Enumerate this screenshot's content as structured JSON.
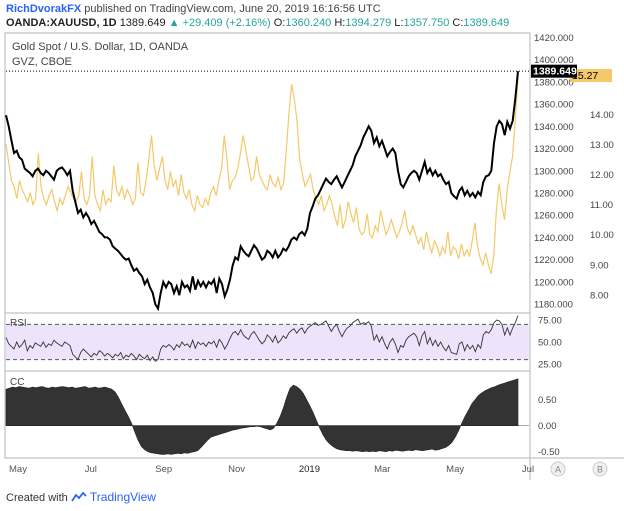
{
  "header": {
    "author": "RichDvorakFX",
    "published_text": "published on TradingView.com, June 20, 2019 16:16:56 UTC",
    "symbol": "OANDA:XAUUSD, 1D",
    "last": "1389.649",
    "change": "+29.409 (+2.16%)",
    "ohlc": {
      "o_label": "O:",
      "o": "1360.240",
      "h_label": "H:",
      "h": "1394.279",
      "l_label": "L:",
      "l": "1357.750",
      "c_label": "C:",
      "c": "1389.649"
    }
  },
  "footer": {
    "created_with": "Created with",
    "brand": "TradingView"
  },
  "colors": {
    "gold": "#000000",
    "gvz": "#f3c969",
    "rsi_band": "#ede4fb",
    "cc_fill": "#333333",
    "accent": "#2962ff"
  },
  "chart_data": [
    {
      "type": "line",
      "panel": "main",
      "legend": [
        "Gold Spot / U.S. Dollar, 1D, OANDA",
        "GVZ, CBOE"
      ],
      "x_ticks": [
        "May",
        "Jul",
        "Sep",
        "Nov",
        "2019",
        "Mar",
        "May",
        "Jul"
      ],
      "y_left_ticks": [
        "1420.000",
        "1400.000",
        "1380.000",
        "1360.000",
        "1340.000",
        "1320.000",
        "1300.000",
        "1280.000",
        "1260.000",
        "1240.000",
        "1220.000",
        "1200.000",
        "1180.000"
      ],
      "y_left_range": [
        1172,
        1424
      ],
      "y_right_ticks": [
        "15.00",
        "14.00",
        "13.00",
        "12.00",
        "11.00",
        "10.00",
        "9.00",
        "8.00"
      ],
      "y_right_range": [
        7.4,
        16.7
      ],
      "last_price_label": "1389.649",
      "last_gvz_label": "15.27",
      "series": [
        {
          "name": "Gold Spot / U.S. Dollar, 1D, OANDA",
          "axis": "left",
          "values": [
            1350,
            1340,
            1328,
            1316,
            1318,
            1312,
            1310,
            1302,
            1300,
            1298,
            1295,
            1300,
            1302,
            1298,
            1296,
            1300,
            1298,
            1295,
            1292,
            1300,
            1302,
            1303,
            1300,
            1296,
            1300,
            1282,
            1272,
            1262,
            1265,
            1258,
            1262,
            1258,
            1252,
            1255,
            1250,
            1245,
            1243,
            1240,
            1240,
            1238,
            1232,
            1230,
            1228,
            1225,
            1222,
            1220,
            1221,
            1215,
            1210,
            1212,
            1208,
            1205,
            1198,
            1202,
            1195,
            1190,
            1180,
            1176,
            1190,
            1200,
            1195,
            1200,
            1198,
            1190,
            1196,
            1188,
            1200,
            1195,
            1197,
            1192,
            1205,
            1193,
            1201,
            1196,
            1200,
            1195,
            1200,
            1198,
            1202,
            1190,
            1203,
            1198,
            1187,
            1193,
            1202,
            1215,
            1222,
            1220,
            1232,
            1228,
            1225,
            1223,
            1228,
            1233,
            1230,
            1225,
            1220,
            1222,
            1228,
            1226,
            1222,
            1228,
            1222,
            1225,
            1230,
            1228,
            1232,
            1238,
            1240,
            1238,
            1243,
            1245,
            1242,
            1248,
            1262,
            1268,
            1275,
            1278,
            1283,
            1288,
            1293,
            1290,
            1288,
            1292,
            1295,
            1290,
            1285,
            1290,
            1295,
            1300,
            1305,
            1313,
            1318,
            1323,
            1330,
            1335,
            1340,
            1336,
            1325,
            1330,
            1322,
            1327,
            1320,
            1313,
            1317,
            1320,
            1316,
            1300,
            1288,
            1285,
            1290,
            1295,
            1298,
            1300,
            1298,
            1292,
            1300,
            1308,
            1298,
            1302,
            1296,
            1300,
            1295,
            1297,
            1292,
            1288,
            1290,
            1280,
            1277,
            1275,
            1282,
            1285,
            1278,
            1282,
            1277,
            1280,
            1276,
            1281,
            1278,
            1290,
            1295,
            1296,
            1300,
            1325,
            1340,
            1345,
            1342,
            1332,
            1344,
            1338,
            1345,
            1365,
            1389.649
          ]
        },
        {
          "name": "GVZ, CBOE",
          "axis": "right",
          "values": [
            13.0,
            12.4,
            11.8,
            11.6,
            11.2,
            11.8,
            11.5,
            11.3,
            11.1,
            11.4,
            11.0,
            11.2,
            12.7,
            11.6,
            11.2,
            11.0,
            11.3,
            11.5,
            11.1,
            10.8,
            11.2,
            11.0,
            11.3,
            11.6,
            11.4,
            11.2,
            11.1,
            11.3,
            12.1,
            11.2,
            11.0,
            11.3,
            12.6,
            11.3,
            11.0,
            10.8,
            11.5,
            11.0,
            11.2,
            11.1,
            12.3,
            11.5,
            11.3,
            11.6,
            11.2,
            11.5,
            11.3,
            11.0,
            11.2,
            12.4,
            11.4,
            11.3,
            11.8,
            12.5,
            13.3,
            12.3,
            11.8,
            12.2,
            12.6,
            11.8,
            11.5,
            12.1,
            11.6,
            11.8,
            11.3,
            12.0,
            11.4,
            11.2,
            11.5,
            11.0,
            10.8,
            11.3,
            11.0,
            10.9,
            11.2,
            11.0,
            11.4,
            11.6,
            11.3,
            11.8,
            12.2,
            13.3,
            12.5,
            11.5,
            11.8,
            11.9,
            12.2,
            12.7,
            13.3,
            12.8,
            12.3,
            11.8,
            11.9,
            12.6,
            12.0,
            11.8,
            11.6,
            11.5,
            12.0,
            11.7,
            11.6,
            11.9,
            11.5,
            11.7,
            12.8,
            14.0,
            15.0,
            14.5,
            13.8,
            12.5,
            12.0,
            11.6,
            11.8,
            12.0,
            11.5,
            11.2,
            11.0,
            11.3,
            10.8,
            11.0,
            11.3,
            11.0,
            10.6,
            10.3,
            11.0,
            10.2,
            10.5,
            11.1,
            10.7,
            10.4,
            10.9,
            10.2,
            10.0,
            10.1,
            10.7,
            10.0,
            9.9,
            10.3,
            10.1,
            10.8,
            10.4,
            10.0,
            10.2,
            10.5,
            10.2,
            9.9,
            10.1,
            10.4,
            10.8,
            10.2,
            10.0,
            10.3,
            10.0,
            9.7,
            9.9,
            9.5,
            10.1,
            9.7,
            9.4,
            9.8,
            9.6,
            9.3,
            9.6,
            9.4,
            10.1,
            9.3,
            9.6,
            9.5,
            9.2,
            9.7,
            9.3,
            9.5,
            9.3,
            9.8,
            10.4,
            9.6,
            9.2,
            9.0,
            9.4,
            9.0,
            8.7,
            9.3,
            10.8,
            11.7,
            11.0,
            10.5,
            11.5,
            12.1,
            12.6,
            13.8,
            15.27
          ]
        }
      ]
    },
    {
      "type": "line",
      "panel": "rsi",
      "legend": [
        "RSI"
      ],
      "y_ticks": [
        "75.00",
        "50.00",
        "25.00"
      ],
      "y_range": [
        17,
        83
      ],
      "overbought": 70,
      "oversold": 30,
      "series": [
        {
          "name": "RSI",
          "values": [
            55,
            48,
            45,
            42,
            50,
            44,
            47,
            52,
            40,
            46,
            43,
            49,
            47,
            45,
            50,
            44,
            48,
            46,
            52,
            49,
            47,
            45,
            50,
            48,
            46,
            36,
            33,
            30,
            38,
            42,
            39,
            36,
            33,
            37,
            35,
            40,
            38,
            34,
            37,
            35,
            32,
            36,
            34,
            38,
            31,
            35,
            33,
            37,
            34,
            30,
            36,
            33,
            31,
            35,
            29,
            33,
            28,
            30,
            42,
            46,
            44,
            47,
            45,
            41,
            47,
            44,
            50,
            46,
            48,
            44,
            52,
            43,
            50,
            47,
            49,
            45,
            50,
            48,
            51,
            44,
            53,
            49,
            42,
            47,
            54,
            60,
            62,
            58,
            64,
            58,
            55,
            53,
            59,
            62,
            57,
            52,
            48,
            51,
            58,
            55,
            50,
            57,
            49,
            52,
            57,
            54,
            60,
            63,
            65,
            60,
            64,
            66,
            60,
            65,
            68,
            70,
            72,
            69,
            70,
            72,
            74,
            68,
            62,
            67,
            70,
            62,
            56,
            62,
            66,
            68,
            72,
            74,
            76,
            70,
            72,
            71,
            73,
            68,
            52,
            58,
            50,
            56,
            48,
            42,
            50,
            54,
            48,
            38,
            46,
            44,
            52,
            56,
            58,
            60,
            56,
            46,
            57,
            62,
            48,
            55,
            46,
            52,
            45,
            50,
            44,
            40,
            46,
            38,
            37,
            36,
            48,
            50,
            40,
            47,
            42,
            46,
            39,
            47,
            43,
            58,
            62,
            60,
            64,
            72,
            75,
            74,
            70,
            58,
            66,
            58,
            66,
            72,
            80
          ]
        }
      ]
    },
    {
      "type": "area",
      "panel": "cc",
      "legend": [
        "CC"
      ],
      "y_ticks": [
        "0.50",
        "0.00",
        "-0.50"
      ],
      "y_range": [
        -0.62,
        1.05
      ],
      "series": [
        {
          "name": "CC",
          "values": [
            0.7,
            0.72,
            0.74,
            0.73,
            0.75,
            0.74,
            0.73,
            0.72,
            0.74,
            0.73,
            0.74,
            0.75,
            0.73,
            0.72,
            0.74,
            0.73,
            0.74,
            0.75,
            0.74,
            0.73,
            0.74,
            0.72,
            0.73,
            0.74,
            0.75,
            0.72,
            0.73,
            0.74,
            0.72,
            0.73,
            0.74,
            0.72,
            0.7,
            0.65,
            0.55,
            0.42,
            0.3,
            0.18,
            0.05,
            -0.12,
            -0.28,
            -0.4,
            -0.46,
            -0.5,
            -0.52,
            -0.53,
            -0.54,
            -0.55,
            -0.55,
            -0.54,
            -0.55,
            -0.54,
            -0.53,
            -0.54,
            -0.52,
            -0.53,
            -0.51,
            -0.5,
            -0.48,
            -0.42,
            -0.35,
            -0.28,
            -0.22,
            -0.2,
            -0.18,
            -0.16,
            -0.14,
            -0.12,
            -0.1,
            -0.08,
            -0.07,
            -0.05,
            -0.04,
            -0.03,
            -0.02,
            -0.02,
            -0.01,
            -0.02,
            -0.04,
            -0.06,
            -0.08,
            -0.05,
            0.05,
            0.18,
            0.35,
            0.55,
            0.72,
            0.78,
            0.75,
            0.7,
            0.62,
            0.5,
            0.38,
            0.25,
            0.1,
            -0.05,
            -0.18,
            -0.28,
            -0.35,
            -0.4,
            -0.44,
            -0.46,
            -0.47,
            -0.48,
            -0.48,
            -0.49,
            -0.48,
            -0.49,
            -0.5,
            -0.49,
            -0.5,
            -0.49,
            -0.5,
            -0.48,
            -0.49,
            -0.5,
            -0.48,
            -0.49,
            -0.47,
            -0.48,
            -0.49,
            -0.48,
            -0.47,
            -0.48,
            -0.46,
            -0.47,
            -0.48,
            -0.47,
            -0.46,
            -0.45,
            -0.47,
            -0.46,
            -0.44,
            -0.42,
            -0.38,
            -0.32,
            -0.22,
            -0.1,
            0.05,
            0.18,
            0.3,
            0.42,
            0.5,
            0.58,
            0.63,
            0.67,
            0.7,
            0.73,
            0.75,
            0.78,
            0.8,
            0.82,
            0.84,
            0.86,
            0.88,
            0.9
          ]
        }
      ]
    }
  ],
  "toolbar": {
    "a_label": "A",
    "b_label": "B"
  }
}
